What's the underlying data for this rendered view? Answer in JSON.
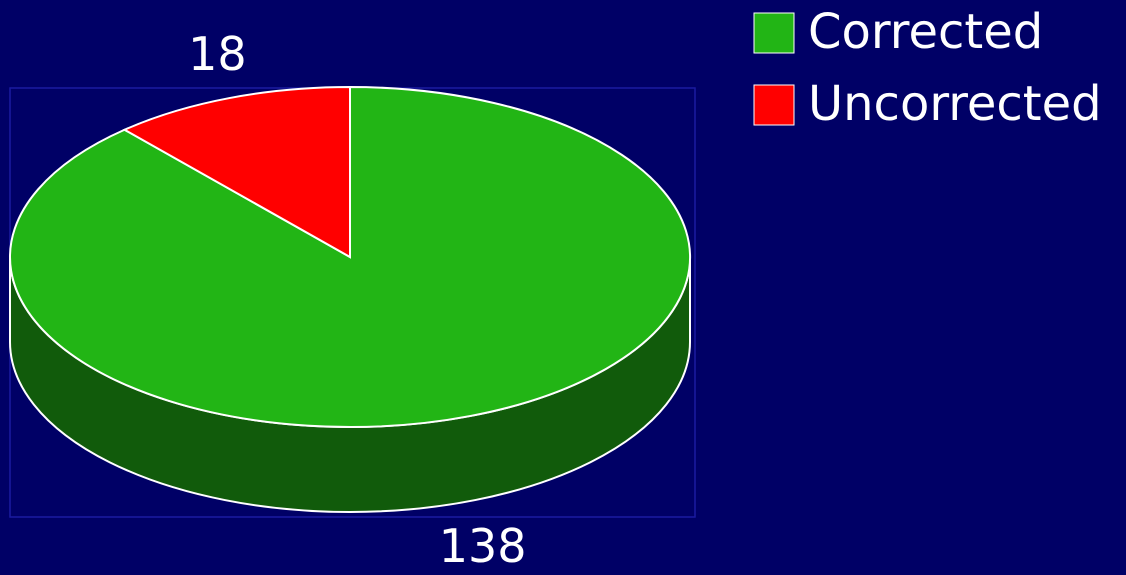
{
  "chart_data": {
    "type": "pie",
    "categories": [
      "Corrected",
      "Uncorrected"
    ],
    "values": [
      138,
      18
    ],
    "colors": [
      "#22b515",
      "#ff0000"
    ],
    "legend": "top-right",
    "three_d": true
  }
}
